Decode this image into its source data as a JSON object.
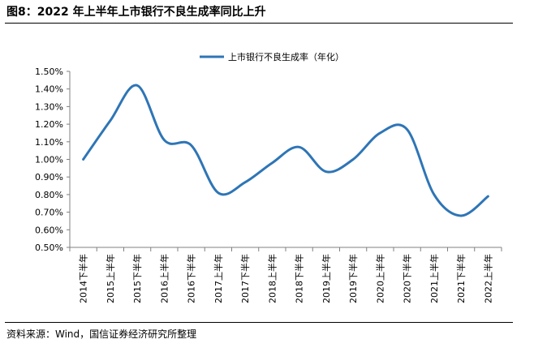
{
  "page_title": "图8：2022 年上半年上市银行不良生成率同比上升",
  "source_note": "资料来源：Wind，国信证券经济研究所整理",
  "chart_data": {
    "type": "line",
    "title": "",
    "xlabel": "",
    "ylabel": "",
    "categories": [
      "2014下半年",
      "2015上半年",
      "2015下半年",
      "2016上半年",
      "2016下半年",
      "2017上半年",
      "2017下半年",
      "2018上半年",
      "2018下半年",
      "2019上半年",
      "2019下半年",
      "2020上半年",
      "2020下半年",
      "2021上半年",
      "2021下半年",
      "2022上半年"
    ],
    "series": [
      {
        "name": "上市银行不良生成率（年化）",
        "values": [
          1.0,
          1.22,
          1.42,
          1.11,
          1.08,
          0.81,
          0.87,
          0.98,
          1.07,
          0.93,
          1.0,
          1.15,
          1.17,
          0.8,
          0.68,
          0.79
        ],
        "color": "#2E75B6"
      }
    ],
    "ylim": [
      0.5,
      1.5
    ],
    "yticks": [
      "0.50%",
      "0.60%",
      "0.70%",
      "0.80%",
      "0.90%",
      "1.00%",
      "1.10%",
      "1.20%",
      "1.30%",
      "1.40%",
      "1.50%"
    ],
    "grid": false,
    "legend_position": "top-center"
  }
}
